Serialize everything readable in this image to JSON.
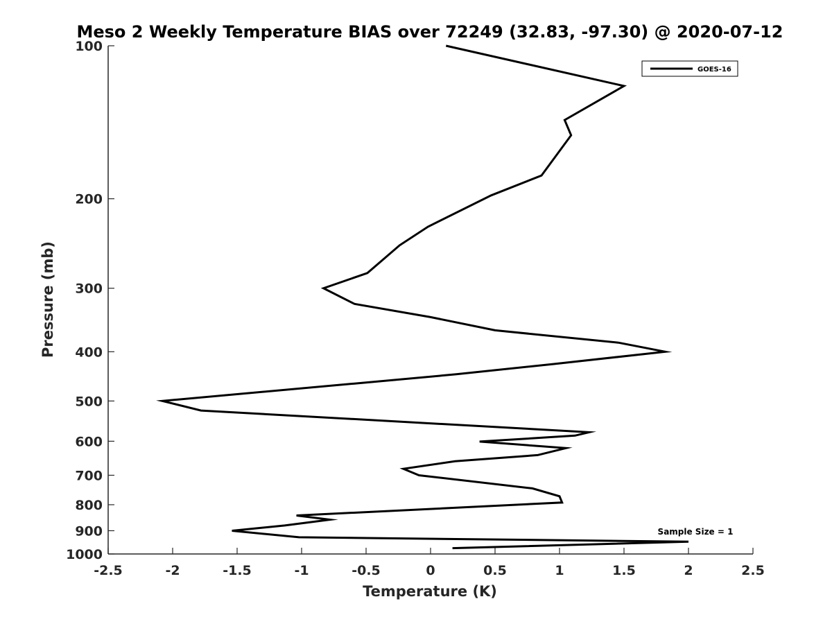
{
  "chart_data": {
    "type": "line",
    "title": "Meso 2 Weekly Temperature BIAS over 72249 (32.83, -97.30) @ 2020-07-12",
    "xlabel": "Temperature (K)",
    "ylabel": "Pressure (mb)",
    "xlim": [
      -2.5,
      2.5
    ],
    "ylim": [
      1000,
      100
    ],
    "y_scale": "log",
    "y_reversed": true,
    "x_ticks": [
      "-2.5",
      "-2",
      "-1.5",
      "-1",
      "-0.5",
      "0",
      "0.5",
      "1",
      "1.5",
      "2",
      "2.5"
    ],
    "y_ticks": [
      "100",
      "200",
      "300",
      "400",
      "500",
      "600",
      "700",
      "800",
      "900",
      "1000"
    ],
    "grid": false,
    "legend_position": "top-right",
    "annotation": "Sample Size = 1",
    "series": [
      {
        "name": "GOES-16",
        "color": "#000000",
        "points": [
          [
            0.12,
            100
          ],
          [
            1.5,
            120
          ],
          [
            1.04,
            140
          ],
          [
            1.09,
            150
          ],
          [
            0.86,
            180
          ],
          [
            0.47,
            197
          ],
          [
            -0.02,
            227
          ],
          [
            -0.24,
            247
          ],
          [
            -0.49,
            280
          ],
          [
            -0.83,
            300
          ],
          [
            -0.59,
            322
          ],
          [
            0.0,
            342
          ],
          [
            0.5,
            363
          ],
          [
            1.46,
            384
          ],
          [
            1.82,
            400
          ],
          [
            0.95,
            423
          ],
          [
            0.2,
            443
          ],
          [
            -0.59,
            462
          ],
          [
            -2.08,
            500
          ],
          [
            -1.78,
            522
          ],
          [
            1.23,
            576
          ],
          [
            1.12,
            585
          ],
          [
            0.38,
            601
          ],
          [
            1.05,
            619
          ],
          [
            0.83,
            639
          ],
          [
            0.19,
            657
          ],
          [
            -0.21,
            680
          ],
          [
            -0.09,
            700
          ],
          [
            0.79,
            743
          ],
          [
            1.0,
            770
          ],
          [
            1.02,
            792
          ],
          [
            -1.04,
            840
          ],
          [
            -0.78,
            856
          ],
          [
            -1.13,
            879
          ],
          [
            -1.54,
            900
          ],
          [
            -1.02,
            927
          ],
          [
            2.0,
            946
          ],
          [
            0.17,
            974
          ]
        ]
      }
    ]
  }
}
